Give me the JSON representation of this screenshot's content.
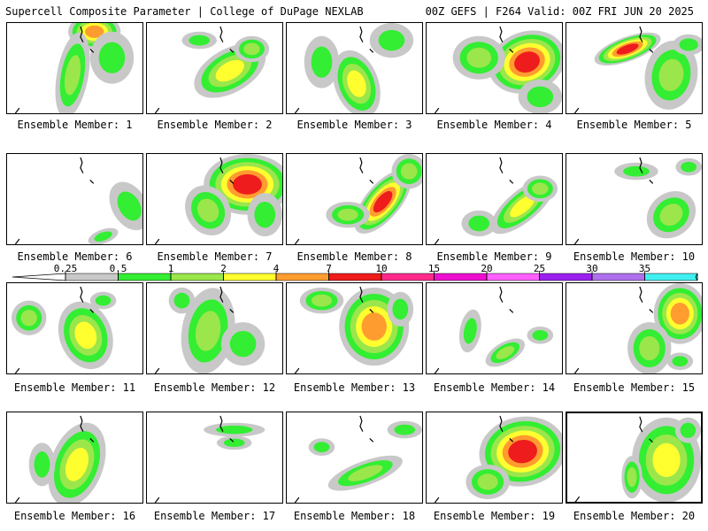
{
  "header": {
    "title_left": "Supercell Composite Parameter | College of DuPage NEXLAB",
    "title_right": "00Z GEFS | F264 Valid: 00Z FRI JUN 20 2025"
  },
  "colors": {
    "0.25": "#c8c8c8",
    "0.5": "#33ee33",
    "1": "#9be64b",
    "2": "#ffff30",
    "4": "#ff9c30",
    "7": "#ee1c1c",
    "10": "#ff2a8a",
    "15": "#ee10d0",
    "20": "#ff60ff",
    "25": "#9a20ee",
    "30": "#b070ee",
    "35": "#40f0f0"
  },
  "colorbar": {
    "labels": [
      "0.25",
      "0.5",
      "1",
      "2",
      "4",
      "7",
      "10",
      "15",
      "20",
      "25",
      "30",
      "35"
    ]
  },
  "panels": [
    {
      "label": "Ensemble Member: 1",
      "highlight": false
    },
    {
      "label": "Ensemble Member: 2",
      "highlight": false
    },
    {
      "label": "Ensemble Member: 3",
      "highlight": false
    },
    {
      "label": "Ensemble Member: 4",
      "highlight": false
    },
    {
      "label": "Ensemble Member: 5",
      "highlight": false
    },
    {
      "label": "Ensemble Member: 6",
      "highlight": false
    },
    {
      "label": "Ensemble Member: 7",
      "highlight": false
    },
    {
      "label": "Ensemble Member: 8",
      "highlight": false
    },
    {
      "label": "Ensemble Member: 9",
      "highlight": false
    },
    {
      "label": "Ensemble Member: 10",
      "highlight": false
    },
    {
      "label": "Ensemble Member: 11",
      "highlight": false
    },
    {
      "label": "Ensemble Member: 12",
      "highlight": false
    },
    {
      "label": "Ensemble Member: 13",
      "highlight": false
    },
    {
      "label": "Ensemble Member: 14",
      "highlight": false
    },
    {
      "label": "Ensemble Member: 15",
      "highlight": false
    },
    {
      "label": "Ensemble Member: 16",
      "highlight": false
    },
    {
      "label": "Ensemble Member: 17",
      "highlight": false
    },
    {
      "label": "Ensemble Member: 18",
      "highlight": false
    },
    {
      "label": "Ensemble Member: 19",
      "highlight": false
    },
    {
      "label": "Ensemble Member: 20",
      "highlight": true
    }
  ]
}
